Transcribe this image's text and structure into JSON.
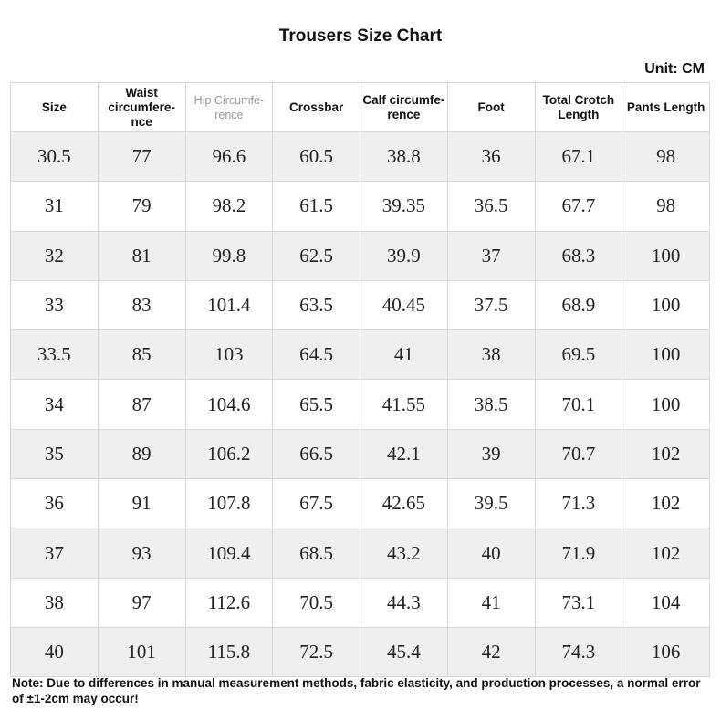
{
  "header": {
    "title": "Trousers Size Chart",
    "unit": "Unit: CM"
  },
  "table": {
    "columns": [
      "Size",
      "Waist\ncircumfere-\nnce",
      "Hip Circumfe-\nrence",
      "Crossbar",
      "Calf circumfe-\nrence",
      "Foot",
      "Total Crotch\nLength",
      "Pants Length"
    ],
    "rows": [
      [
        30.5,
        77,
        96.6,
        60.5,
        38.8,
        36,
        67.1,
        98
      ],
      [
        31,
        79,
        98.2,
        61.5,
        39.35,
        36.5,
        67.7,
        98
      ],
      [
        32,
        81,
        99.8,
        62.5,
        39.9,
        37,
        68.3,
        100
      ],
      [
        33,
        83,
        101.4,
        63.5,
        40.45,
        37.5,
        68.9,
        100
      ],
      [
        33.5,
        85,
        103,
        64.5,
        41,
        38,
        69.5,
        100
      ],
      [
        34,
        87,
        104.6,
        65.5,
        41.55,
        38.5,
        70.1,
        100
      ],
      [
        35,
        89,
        106.2,
        66.5,
        42.1,
        39,
        70.7,
        102
      ],
      [
        36,
        91,
        107.8,
        67.5,
        42.65,
        39.5,
        71.3,
        102
      ],
      [
        37,
        93,
        109.4,
        68.5,
        43.2,
        40,
        71.9,
        102
      ],
      [
        38,
        97,
        112.6,
        70.5,
        44.3,
        41,
        73.1,
        104
      ],
      [
        40,
        101,
        115.8,
        72.5,
        45.4,
        42,
        74.3,
        106
      ]
    ]
  },
  "note": "Note: Due to differences in manual measurement methods, fabric elasticity, and production processes, a normal error of ±1-2cm may occur!"
}
